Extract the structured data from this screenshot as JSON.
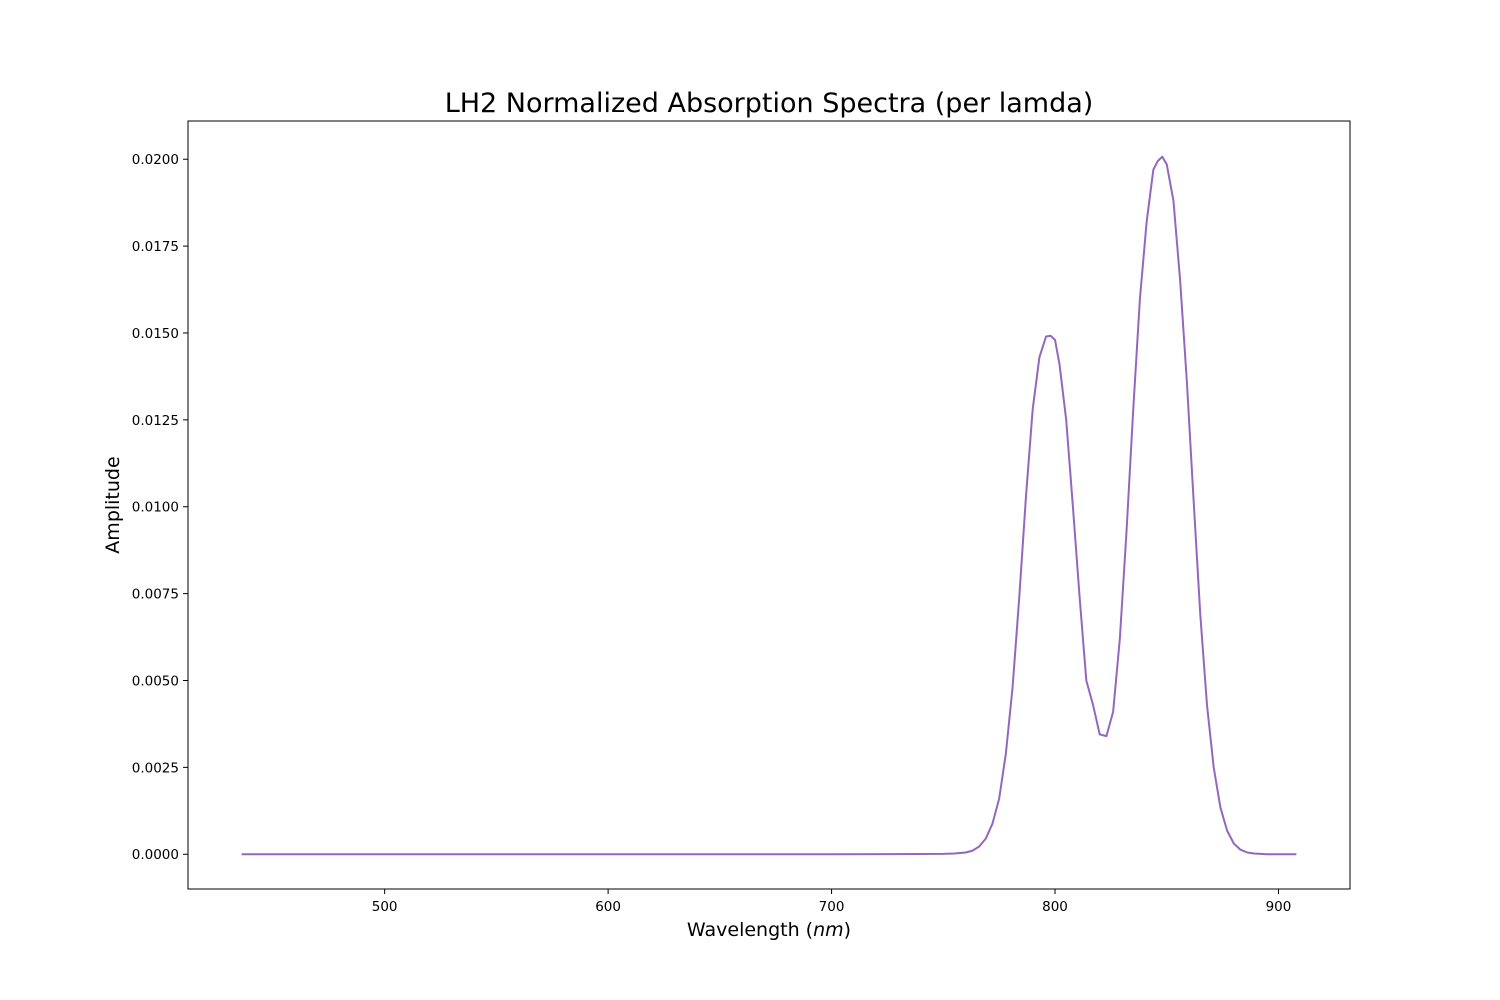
{
  "chart_data": {
    "type": "line",
    "title": "LH2 Normalized Absorption Spectra (per lamda)",
    "xlabel": "Wavelength (nm)",
    "xlabel_prefix": "Wavelength (",
    "xlabel_unit": "nm",
    "xlabel_suffix": ")",
    "ylabel": "Amplitude",
    "xlim": [
      412,
      932
    ],
    "ylim": [
      -0.001,
      0.0211
    ],
    "x_ticks": [
      500,
      600,
      700,
      800,
      900
    ],
    "x_tick_labels": [
      "500",
      "600",
      "700",
      "800",
      "900"
    ],
    "y_ticks": [
      0,
      0.0025,
      0.005,
      0.0075,
      0.01,
      0.0125,
      0.015,
      0.0175,
      0.02
    ],
    "y_tick_labels": [
      "0.0000",
      "0.0025",
      "0.0050",
      "0.0075",
      "0.0100",
      "0.0125",
      "0.0150",
      "0.0175",
      "0.0200"
    ],
    "grid": false,
    "line_color": "#9467bd",
    "series": [
      {
        "x": [
          436,
          500,
          600,
          700,
          750,
          755,
          760,
          763,
          766,
          769,
          772,
          775,
          778,
          781,
          784,
          787,
          790,
          793,
          796,
          798,
          800,
          802,
          805,
          808,
          811,
          814,
          817,
          820,
          823,
          826,
          829,
          832,
          835,
          838,
          841,
          844,
          846,
          848,
          850,
          853,
          856,
          859,
          862,
          865,
          868,
          871,
          874,
          877,
          880,
          883,
          886,
          889,
          892,
          895,
          900,
          908
        ],
        "y": [
          0,
          0,
          0,
          0,
          1e-05,
          2e-05,
          5e-05,
          0.0001,
          0.00022,
          0.00045,
          0.00088,
          0.0016,
          0.0029,
          0.0048,
          0.0074,
          0.0103,
          0.0128,
          0.0143,
          0.0149,
          0.01492,
          0.0148,
          0.0141,
          0.0125,
          0.01,
          0.0074,
          0.005,
          0.0043,
          0.00345,
          0.0034,
          0.0041,
          0.0062,
          0.0093,
          0.0128,
          0.016,
          0.0182,
          0.0197,
          0.01995,
          0.02007,
          0.01985,
          0.0188,
          0.0165,
          0.0136,
          0.0102,
          0.0069,
          0.0043,
          0.0025,
          0.00135,
          0.00068,
          0.00031,
          0.00013,
          5e-05,
          2e-05,
          1e-05,
          0,
          0,
          0
        ]
      }
    ]
  }
}
